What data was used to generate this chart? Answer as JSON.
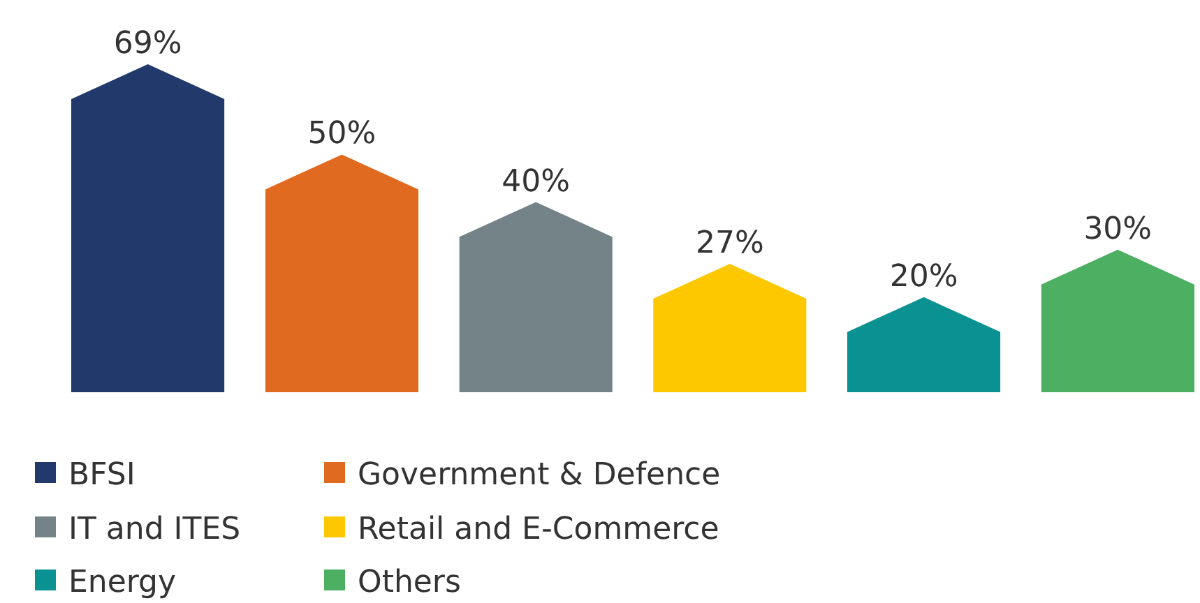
{
  "chart_data": {
    "type": "bar",
    "categories": [
      null,
      null,
      null,
      null,
      null,
      null
    ],
    "series": [
      {
        "name": "BFSI",
        "color": "#22396b",
        "values": [
          69,
          null,
          null,
          null,
          null,
          null
        ],
        "value_labels": [
          "69%",
          null,
          null,
          null,
          null,
          null
        ]
      },
      {
        "name": "Government & Defence",
        "color": "#e06a1f",
        "values": [
          null,
          50,
          null,
          null,
          null,
          null
        ],
        "value_labels": [
          null,
          "50%",
          null,
          null,
          null,
          null
        ]
      },
      {
        "name": "IT and ITES",
        "color": "#748388",
        "values": [
          null,
          null,
          40,
          null,
          null,
          null
        ],
        "value_labels": [
          null,
          null,
          "40%",
          null,
          null,
          null
        ]
      },
      {
        "name": "Retail and E-Commerce",
        "color": "#fdc800",
        "values": [
          null,
          null,
          null,
          27,
          null,
          null
        ],
        "value_labels": [
          null,
          null,
          null,
          "27%",
          null,
          null
        ]
      },
      {
        "name": "Energy",
        "color": "#0a9292",
        "values": [
          null,
          null,
          null,
          null,
          20,
          null
        ],
        "value_labels": [
          null,
          null,
          null,
          null,
          "20%",
          null
        ]
      },
      {
        "name": "Others",
        "color": "#4caf61",
        "values": [
          null,
          null,
          null,
          null,
          null,
          30
        ],
        "value_labels": [
          null,
          null,
          null,
          null,
          null,
          "30%"
        ]
      }
    ],
    "stacked": true,
    "legend": "bottom"
  }
}
